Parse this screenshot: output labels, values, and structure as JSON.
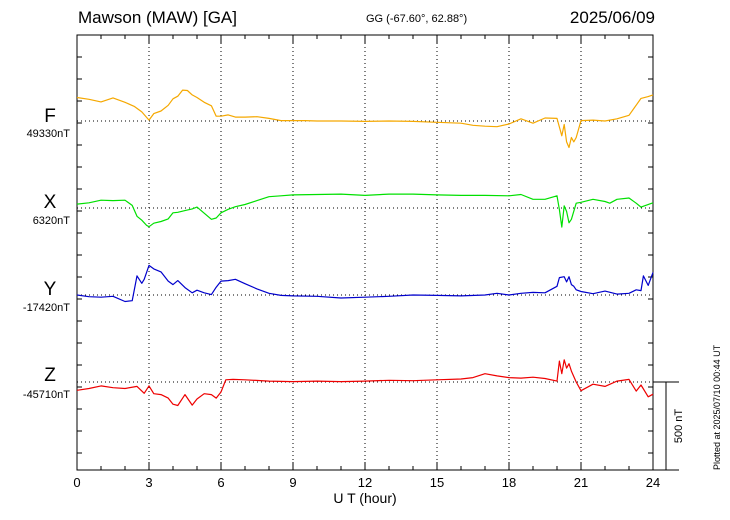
{
  "header": {
    "station": "Mawson (MAW)  [GA]",
    "coords": "GG (-67.60°,  62.88°)",
    "date": "2025/06/09"
  },
  "footer": {
    "plotted": "Plotted at 2025/07/10 00:44 UT"
  },
  "chart_data": {
    "type": "line",
    "title": "Mawson (MAW)  [GA]",
    "xlabel": "U T (hour)",
    "ylabel": "",
    "xlim": [
      0,
      24
    ],
    "xticks": [
      0,
      3,
      6,
      9,
      12,
      15,
      18,
      21,
      24
    ],
    "grid": true,
    "scale_bar": "500 nT",
    "series": [
      {
        "name": "F",
        "baseline_label": "49330nT",
        "color": "#f5a800",
        "x": [
          0,
          0.5,
          1,
          1.5,
          2,
          2.4,
          2.7,
          3,
          3.2,
          3.5,
          3.8,
          4.0,
          4.2,
          4.4,
          4.6,
          4.8,
          5.0,
          5.3,
          5.6,
          5.8,
          6.0,
          6.3,
          6.6,
          7,
          7.5,
          8,
          8.5,
          9,
          9.5,
          10,
          11,
          12,
          13,
          14,
          15,
          16,
          16.5,
          17,
          17.5,
          18,
          18.5,
          19,
          19.5,
          20,
          20.1,
          20.2,
          20.3,
          20.4,
          20.5,
          20.6,
          20.7,
          20.8,
          21,
          21.5,
          22,
          22.5,
          23,
          23.5,
          23.8,
          24
        ],
        "y": [
          1270,
          1250,
          1220,
          1265,
          1215,
          1165,
          1105,
          1010,
          1085,
          1115,
          1180,
          1255,
          1285,
          1355,
          1350,
          1300,
          1270,
          1215,
          1175,
          1055,
          1055,
          1070,
          1045,
          1045,
          1050,
          1030,
          1005,
          1005,
          1005,
          1000,
          1000,
          995,
          1000,
          995,
          985,
          975,
          950,
          940,
          935,
          965,
          1025,
          975,
          1035,
          1030,
          930,
          830,
          960,
          760,
          695,
          810,
          760,
          810,
          1005,
          1010,
          1000,
          1025,
          1065,
          1260,
          1280,
          1300
        ]
      },
      {
        "name": "X",
        "baseline_label": "6320nT",
        "color": "#00e000",
        "x": [
          0,
          0.5,
          1,
          1.5,
          2,
          2.3,
          2.5,
          2.7,
          2.9,
          3.0,
          3.2,
          3.5,
          3.8,
          4.0,
          4.2,
          4.5,
          4.8,
          5.0,
          5.3,
          5.6,
          5.8,
          6.0,
          6.3,
          6.6,
          7,
          7.5,
          8,
          8.5,
          9,
          10,
          11,
          12,
          13,
          14,
          15,
          16,
          17,
          18,
          18.5,
          19,
          19.5,
          20,
          20.1,
          20.2,
          20.3,
          20.4,
          20.5,
          20.6,
          20.8,
          21,
          21.5,
          22,
          22.2,
          22.5,
          23,
          23.3,
          23.5,
          24
        ],
        "y": [
          1045,
          1060,
          1090,
          1085,
          1090,
          1030,
          905,
          860,
          800,
          785,
          825,
          845,
          875,
          945,
          950,
          970,
          990,
          1010,
          940,
          870,
          885,
          945,
          985,
          1015,
          1040,
          1085,
          1130,
          1140,
          1150,
          1155,
          1160,
          1145,
          1160,
          1160,
          1150,
          1145,
          1145,
          1140,
          1155,
          1100,
          1100,
          1140,
          980,
          780,
          1025,
          960,
          830,
          870,
          1055,
          1065,
          1100,
          1075,
          1055,
          1100,
          1115,
          1055,
          1010,
          1060
        ]
      },
      {
        "name": "Y",
        "baseline_label": "-17420nT",
        "color": "#0000cc",
        "x": [
          0,
          0.5,
          1,
          1.5,
          2,
          2.3,
          2.5,
          2.7,
          2.8,
          3.0,
          3.2,
          3.5,
          3.8,
          4.0,
          4.2,
          4.5,
          4.8,
          5.0,
          5.3,
          5.6,
          5.8,
          6.0,
          6.3,
          6.6,
          7,
          7.5,
          8,
          8.5,
          9,
          10,
          11,
          12,
          13,
          14,
          15,
          16,
          17,
          17.5,
          18,
          18.5,
          19,
          19.5,
          20,
          20.1,
          20.3,
          20.4,
          20.5,
          20.6,
          20.7,
          20.8,
          21,
          21.5,
          22,
          22.5,
          23,
          23.3,
          23.5,
          23.6,
          23.8,
          24
        ],
        "y": [
          1000,
          980,
          975,
          985,
          925,
          935,
          1220,
          1135,
          1180,
          1340,
          1300,
          1265,
          1160,
          1120,
          1165,
          1085,
          1025,
          1055,
          1025,
          1005,
          1090,
          1160,
          1165,
          1180,
          1130,
          1070,
          1020,
          995,
          990,
          985,
          965,
          975,
          985,
          1000,
          995,
          990,
          1000,
          1020,
          1000,
          1020,
          1030,
          1025,
          1100,
          1200,
          1210,
          1150,
          1210,
          1120,
          1100,
          1060,
          1040,
          1015,
          1045,
          1010,
          1020,
          1060,
          1050,
          1220,
          1110,
          1260
        ]
      },
      {
        "name": "Z",
        "baseline_label": "-45710nT",
        "color": "#ee0000",
        "x": [
          0,
          0.5,
          1,
          1.5,
          2,
          2.5,
          2.8,
          3.0,
          3.2,
          3.5,
          3.8,
          4.0,
          4.2,
          4.5,
          4.8,
          5.0,
          5.3,
          5.6,
          5.8,
          6.0,
          6.2,
          6.5,
          7,
          8,
          9,
          10,
          11,
          12,
          13,
          14,
          15,
          16,
          16.5,
          17,
          17.5,
          18,
          18.5,
          19,
          19.5,
          20,
          20.1,
          20.2,
          20.3,
          20.4,
          20.5,
          20.6,
          20.8,
          21,
          21.5,
          22,
          22.5,
          23,
          23.3,
          23.5,
          23.8,
          24
        ],
        "y": [
          905,
          925,
          955,
          935,
          925,
          950,
          870,
          955,
          865,
          855,
          815,
          745,
          730,
          855,
          735,
          805,
          865,
          855,
          815,
          885,
          1025,
          1030,
          1025,
          1010,
          1005,
          1010,
          1005,
          1010,
          1020,
          1015,
          1025,
          1035,
          1050,
          1095,
          1070,
          1050,
          1045,
          1055,
          1040,
          1010,
          1240,
          1095,
          1255,
          1160,
          1210,
          1125,
          1000,
          900,
          975,
          950,
          1010,
          1030,
          895,
          965,
          830,
          860
        ]
      }
    ]
  }
}
